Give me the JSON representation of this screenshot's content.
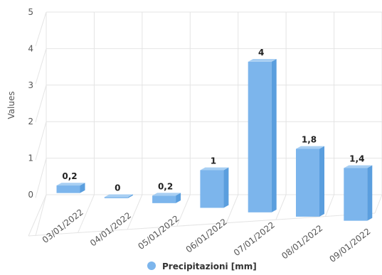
{
  "chart_data": {
    "type": "bar",
    "categories": [
      "03/01/2022",
      "04/01/2022",
      "05/01/2022",
      "06/01/2022",
      "07/01/2022",
      "08/01/2022",
      "09/01/2022"
    ],
    "series": [
      {
        "name": "Precipitazioni [mm]",
        "values": [
          0.2,
          0,
          0.2,
          1,
          4,
          1.8,
          1.4
        ],
        "labels": [
          "0,2",
          "0",
          "0,2",
          "1",
          "4",
          "1,8",
          "1,4"
        ],
        "color": "#7cb5ec"
      }
    ],
    "ylabel": "Values",
    "ylim": [
      0,
      5
    ],
    "yticks": [
      "0",
      "1",
      "2",
      "3",
      "4",
      "5"
    ],
    "grid": true,
    "legend": "bottom-center",
    "style": "3d-column"
  }
}
